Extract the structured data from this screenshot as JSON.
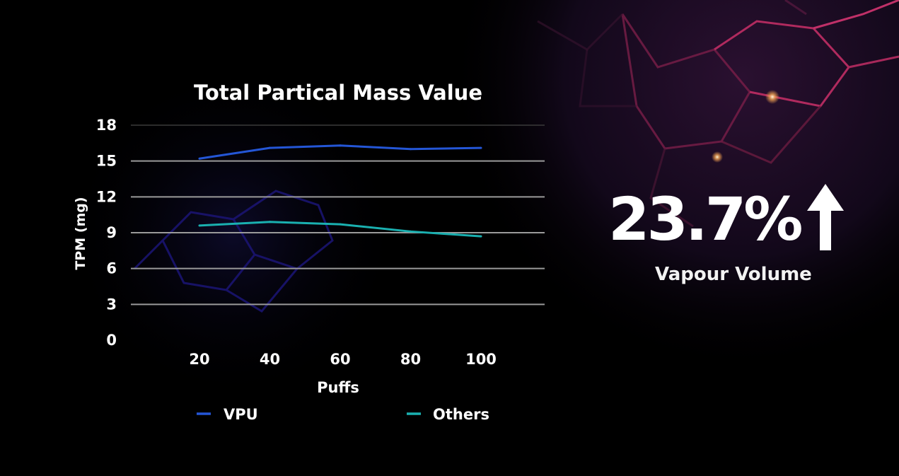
{
  "chart_data": {
    "type": "line",
    "title": "Total Partical Mass Value",
    "xlabel": "Puffs",
    "ylabel": "TPM (mg)",
    "x": [
      20,
      40,
      60,
      80,
      100
    ],
    "ylim": [
      0,
      18
    ],
    "yticks": [
      0,
      3,
      6,
      9,
      12,
      15,
      18
    ],
    "grid": true,
    "legend": "bottom",
    "series": [
      {
        "name": "VPU",
        "values": [
          15.2,
          16.1,
          16.3,
          16.0,
          16.1
        ],
        "color": "#2456d6"
      },
      {
        "name": "Others",
        "values": [
          9.6,
          9.9,
          9.7,
          9.1,
          8.7
        ],
        "color": "#1ab0b0"
      }
    ]
  },
  "stat": {
    "value": "23.7%",
    "label": "Vapour Volume",
    "icon": "up-arrow-icon"
  },
  "colors": {
    "background": "#000000",
    "accent_glow": "#c0306a"
  }
}
